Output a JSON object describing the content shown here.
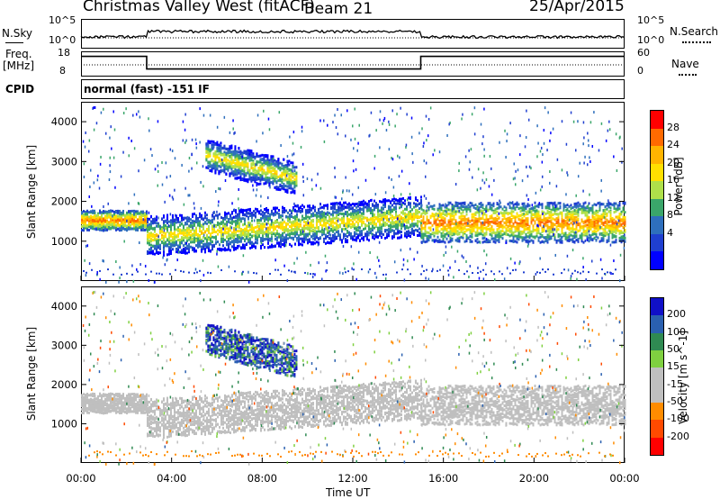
{
  "header": {
    "title": "Christmas Valley West (fitACF)",
    "beam": "Beam 21",
    "date": "25/Apr/2015"
  },
  "panel_labels": {
    "nsky": "N.Sky",
    "nsky_top": "10^5",
    "nsky_bottom": "10^0",
    "nsearch": "N.Search",
    "nsearch_top": "10^5",
    "nsearch_bottom": "10^0",
    "freq": "Freq.",
    "freq_unit": "[MHz]",
    "freq_top": "18",
    "freq_bottom": "8",
    "nave": "Nave",
    "nave_top": "60",
    "nave_bottom": "0",
    "cpid": "CPID",
    "cpid_value": "normal (fast) -151 IF"
  },
  "axes": {
    "ylabel": "Slant Range [km]",
    "xlabel": "Time UT",
    "xticks": [
      "00:00",
      "04:00",
      "08:00",
      "12:00",
      "16:00",
      "20:00",
      "00:00"
    ],
    "yticks": [
      "1000",
      "2000",
      "3000",
      "4000"
    ]
  },
  "power_scale": {
    "label": "Power [dB]",
    "ticks": [
      "28",
      "24",
      "20",
      "16",
      "12",
      "8",
      "4"
    ],
    "colors": [
      "#ff0000",
      "#ff6a00",
      "#ffb400",
      "#ffe000",
      "#aee04a",
      "#3aa66a",
      "#2e6fbd",
      "#1f3fd0",
      "#0000ff"
    ]
  },
  "velocity_scale": {
    "label": "Velocity [m s^-1]",
    "ticks": [
      "200",
      "100",
      "50",
      "15",
      "-15",
      "-50",
      "-100",
      "-200"
    ],
    "colors": [
      "#1010c8",
      "#2a60b0",
      "#2f8a52",
      "#7fd040",
      "#bfbfbf",
      "#bfbfbf",
      "#ff8c00",
      "#ff4a00",
      "#ff0000"
    ]
  },
  "chart_data": {
    "type": "heatmap",
    "title": "Christmas Valley West (fitACF)",
    "xlabel": "Time UT",
    "ylabel": "Slant Range [km]",
    "xlim": [
      0,
      24
    ],
    "ylim": [
      0,
      4500
    ],
    "power_range_db": [
      0,
      30
    ],
    "velocity_range": [
      -200,
      200
    ],
    "frequency_steps": [
      {
        "start_h": 0,
        "end_h": 2.9,
        "freq_mhz": 16
      },
      {
        "start_h": 2.9,
        "end_h": 15,
        "freq_mhz": 11
      },
      {
        "start_h": 15,
        "end_h": 24,
        "freq_mhz": 16
      }
    ],
    "echo_bands": [
      {
        "name": "",
        "t": [
          0.0,
          2.9
        ],
        "r": [
          1300,
          1800
        ],
        "power": 26,
        "velocity": -5
      },
      {
        "name": "",
        "t": [
          2.9,
          15.0
        ],
        "r": [
          900,
          1900
        ],
        "power": 20,
        "velocity": -5
      },
      {
        "name": "",
        "t": [
          15.0,
          24.0
        ],
        "r": [
          1000,
          2000
        ],
        "power": 26,
        "velocity": -5
      },
      {
        "name": "",
        "t": [
          5.5,
          9.5
        ],
        "r": [
          2500,
          3300
        ],
        "power": 20,
        "velocity": 150
      }
    ]
  }
}
